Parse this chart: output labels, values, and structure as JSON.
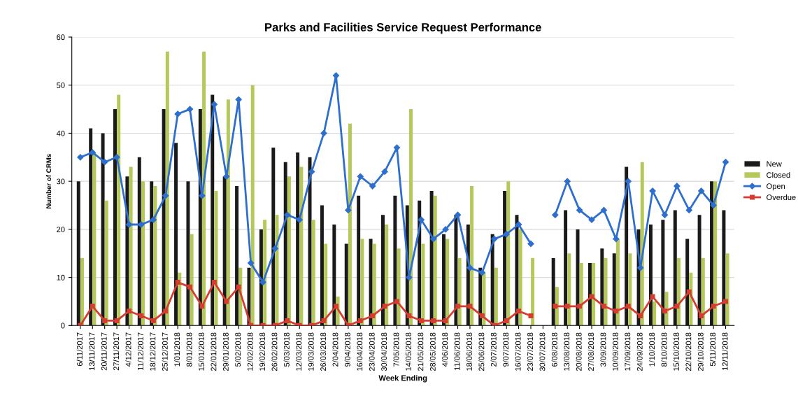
{
  "chart_data": {
    "type": "bar",
    "title": "Parks and Facilities Service Request Performance",
    "xlabel": "Week Ending",
    "ylabel": "Number of CRMs",
    "categories": [
      "6/11/2017",
      "13/11/2017",
      "20/11/2017",
      "27/11/2017",
      "4/12/2017",
      "11/12/2017",
      "18/12/2017",
      "25/12/2017",
      "1/01/2018",
      "8/01/2018",
      "15/01/2018",
      "22/01/2018",
      "29/01/2018",
      "5/02/2018",
      "12/02/2018",
      "19/02/2018",
      "26/02/2018",
      "5/03/2018",
      "12/03/2018",
      "19/03/2018",
      "26/03/2018",
      "2/04/2018",
      "9/04/2018",
      "16/04/2018",
      "23/04/2018",
      "30/04/2018",
      "7/05/2018",
      "14/05/2018",
      "21/05/2018",
      "28/05/2018",
      "4/06/2018",
      "11/06/2018",
      "18/06/2018",
      "25/06/2018",
      "2/07/2018",
      "9/07/2018",
      "16/07/2018",
      "23/07/2018",
      "30/07/2018",
      "6/08/2018",
      "13/08/2018",
      "20/08/2018",
      "27/08/2018",
      "3/09/2018",
      "10/09/2018",
      "17/09/2018",
      "24/09/2018",
      "1/10/2018",
      "8/10/2018",
      "15/10/2018",
      "22/10/2018",
      "29/10/2018",
      "5/11/2018",
      "12/11/2018"
    ],
    "series": [
      {
        "name": "New",
        "color": "#1a1a1a",
        "values": [
          30,
          41,
          40,
          45,
          31,
          35,
          30,
          45,
          38,
          30,
          45,
          48,
          31,
          29,
          12,
          20,
          37,
          34,
          36,
          35,
          25,
          21,
          17,
          27,
          18,
          23,
          27,
          25,
          26,
          28,
          19,
          23,
          21,
          12,
          19,
          28,
          23,
          null,
          null,
          14,
          24,
          20,
          13,
          16,
          15,
          33,
          20,
          21,
          22,
          24,
          18,
          23,
          30,
          24
        ]
      },
      {
        "name": "Closed",
        "color": "#b5c95a",
        "values": [
          14,
          36,
          26,
          48,
          33,
          30,
          29,
          57,
          11,
          19,
          57,
          28,
          47,
          12,
          50,
          22,
          23,
          31,
          33,
          22,
          17,
          6,
          42,
          18,
          17,
          21,
          16,
          45,
          17,
          27,
          18,
          14,
          29,
          11,
          12,
          30,
          20,
          14,
          null,
          8,
          15,
          13,
          13,
          14,
          18,
          15,
          34,
          5,
          7,
          14,
          11,
          14,
          30,
          15
        ]
      },
      {
        "name": "Open",
        "type": "line",
        "color": "#2e6fce",
        "marker": "diamond",
        "values": [
          35,
          36,
          34,
          35,
          21,
          21,
          22,
          27,
          44,
          45,
          27,
          46,
          31,
          47,
          13,
          9,
          16,
          23,
          22,
          32,
          40,
          52,
          24,
          31,
          29,
          32,
          37,
          10,
          22,
          18,
          20,
          23,
          12,
          11,
          18,
          19,
          21,
          17,
          null,
          23,
          30,
          24,
          22,
          24,
          18,
          30,
          12,
          28,
          23,
          29,
          24,
          28,
          25,
          34
        ]
      },
      {
        "name": "Overdue",
        "type": "line",
        "color": "#d63c2f",
        "marker": "square",
        "values": [
          0,
          4,
          1,
          1,
          3,
          2,
          1,
          3,
          9,
          8,
          4,
          9,
          5,
          8,
          0,
          0,
          0,
          1,
          0,
          0,
          1,
          4,
          0,
          1,
          2,
          4,
          5,
          2,
          1,
          1,
          1,
          4,
          4,
          2,
          0,
          1,
          3,
          2,
          null,
          4,
          4,
          4,
          6,
          4,
          3,
          4,
          2,
          6,
          3,
          4,
          7,
          2,
          4,
          5
        ]
      }
    ],
    "ylim": [
      0,
      60
    ],
    "yticks": [
      0,
      10,
      20,
      30,
      40,
      50,
      60
    ],
    "grid": "y",
    "legend": "right"
  }
}
